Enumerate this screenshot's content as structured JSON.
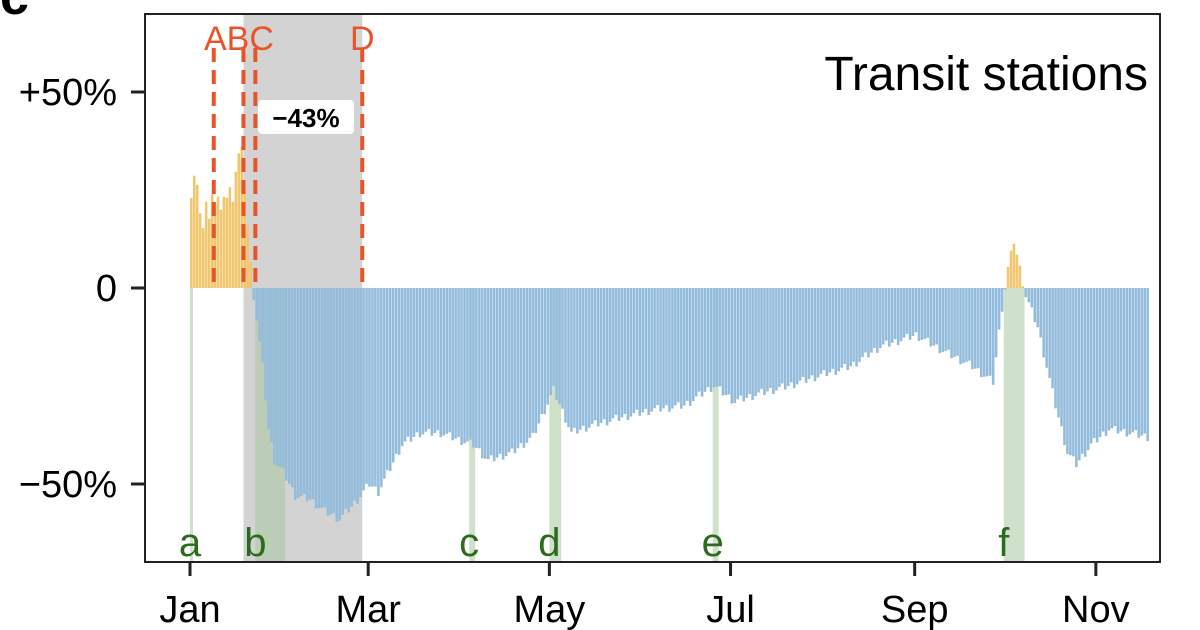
{
  "panel_letter": "c",
  "chart_data": {
    "type": "bar",
    "title": "Transit stations",
    "xlabel": "",
    "ylabel": "",
    "y_unit": "percent change",
    "ylim": [
      -70,
      70
    ],
    "x_range": [
      "2020-01-01",
      "2020-11-20"
    ],
    "x_ticks": [
      {
        "date": "2020-01-01",
        "label": "Jan"
      },
      {
        "date": "2020-03-01",
        "label": "Mar"
      },
      {
        "date": "2020-05-01",
        "label": "May"
      },
      {
        "date": "2020-07-01",
        "label": "Jul"
      },
      {
        "date": "2020-09-01",
        "label": "Sep"
      },
      {
        "date": "2020-11-01",
        "label": "Nov"
      }
    ],
    "y_ticks": [
      {
        "value": 50,
        "label": "+50%"
      },
      {
        "value": 0,
        "label": "0"
      },
      {
        "value": -50,
        "label": "−50%"
      }
    ],
    "colors": {
      "positive": "#f0c66e",
      "negative": "#93bcdc",
      "event_line": "#e8542a",
      "period_label": "#2e6a1e",
      "period_band": "#a8c8a0",
      "shaded_region": "#d3d3d3"
    },
    "events": [
      {
        "label": "A",
        "date": "2020-01-09"
      },
      {
        "label": "BC",
        "date": "2020-01-19",
        "text": "BC"
      },
      {
        "label": "C",
        "date": "2020-01-23",
        "text": ""
      },
      {
        "label": "D",
        "date": "2020-02-28"
      }
    ],
    "shaded_region": {
      "start": "2020-01-19",
      "end": "2020-02-28",
      "annotation": "−43%"
    },
    "periods": [
      {
        "label": "a",
        "start": "2020-01-01",
        "end": "2020-01-01"
      },
      {
        "label": "b",
        "start": "2020-01-23",
        "end": "2020-02-01"
      },
      {
        "label": "c",
        "start": "2020-04-04",
        "end": "2020-04-05"
      },
      {
        "label": "d",
        "start": "2020-05-01",
        "end": "2020-05-04"
      },
      {
        "label": "e",
        "start": "2020-06-25",
        "end": "2020-06-26"
      },
      {
        "label": "f",
        "start": "2020-10-01",
        "end": "2020-10-07"
      }
    ],
    "series": [
      {
        "name": "",
        "keyframes": [
          [
            "2020-01-01",
            24
          ],
          [
            "2020-01-02",
            29
          ],
          [
            "2020-01-03",
            26
          ],
          [
            "2020-01-04",
            18
          ],
          [
            "2020-01-05",
            16
          ],
          [
            "2020-01-06",
            22
          ],
          [
            "2020-01-07",
            17
          ],
          [
            "2020-01-08",
            25
          ],
          [
            "2020-01-09",
            22
          ],
          [
            "2020-01-10",
            23
          ],
          [
            "2020-01-11",
            19
          ],
          [
            "2020-01-12",
            24
          ],
          [
            "2020-01-13",
            23
          ],
          [
            "2020-01-14",
            25
          ],
          [
            "2020-01-15",
            23
          ],
          [
            "2020-01-16",
            30
          ],
          [
            "2020-01-17",
            34
          ],
          [
            "2020-01-18",
            35
          ],
          [
            "2020-01-19",
            26
          ],
          [
            "2020-01-20",
            16
          ],
          [
            "2020-01-21",
            6
          ],
          [
            "2020-01-22",
            -2
          ],
          [
            "2020-01-23",
            -8
          ],
          [
            "2020-01-25",
            -20
          ],
          [
            "2020-01-27",
            -36
          ],
          [
            "2020-01-29",
            -44
          ],
          [
            "2020-02-01",
            -47
          ],
          [
            "2020-02-05",
            -53
          ],
          [
            "2020-02-10",
            -54
          ],
          [
            "2020-02-15",
            -57
          ],
          [
            "2020-02-20",
            -59
          ],
          [
            "2020-02-25",
            -55
          ],
          [
            "2020-03-01",
            -50
          ],
          [
            "2020-03-04",
            -52
          ],
          [
            "2020-03-08",
            -46
          ],
          [
            "2020-03-12",
            -40
          ],
          [
            "2020-03-18",
            -37
          ],
          [
            "2020-03-25",
            -37
          ],
          [
            "2020-04-01",
            -39
          ],
          [
            "2020-04-05",
            -40
          ],
          [
            "2020-04-10",
            -44
          ],
          [
            "2020-04-18",
            -42
          ],
          [
            "2020-04-25",
            -38
          ],
          [
            "2020-05-02",
            -26
          ],
          [
            "2020-05-08",
            -37
          ],
          [
            "2020-05-15",
            -35
          ],
          [
            "2020-05-25",
            -33
          ],
          [
            "2020-06-05",
            -31
          ],
          [
            "2020-06-15",
            -30
          ],
          [
            "2020-06-25",
            -25
          ],
          [
            "2020-07-02",
            -29
          ],
          [
            "2020-07-10",
            -27
          ],
          [
            "2020-07-20",
            -25
          ],
          [
            "2020-08-01",
            -22
          ],
          [
            "2020-08-10",
            -20
          ],
          [
            "2020-08-20",
            -15
          ],
          [
            "2020-09-01",
            -12
          ],
          [
            "2020-09-10",
            -16
          ],
          [
            "2020-09-20",
            -20
          ],
          [
            "2020-09-27",
            -24
          ],
          [
            "2020-09-30",
            -5
          ],
          [
            "2020-10-02",
            5
          ],
          [
            "2020-10-04",
            12
          ],
          [
            "2020-10-06",
            5
          ],
          [
            "2020-10-08",
            -2
          ],
          [
            "2020-10-12",
            -10
          ],
          [
            "2020-10-18",
            -30
          ],
          [
            "2020-10-22",
            -42
          ],
          [
            "2020-10-25",
            -45
          ],
          [
            "2020-10-30",
            -40
          ],
          [
            "2020-11-05",
            -36
          ],
          [
            "2020-11-12",
            -37
          ],
          [
            "2020-11-18",
            -38
          ]
        ]
      }
    ]
  }
}
